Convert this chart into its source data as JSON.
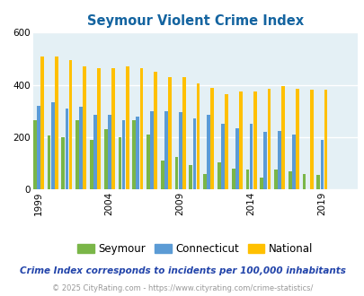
{
  "title": "Seymour Violent Crime Index",
  "subtitle": "Crime Index corresponds to incidents per 100,000 inhabitants",
  "copyright": "© 2025 CityRating.com - https://www.cityrating.com/crime-statistics/",
  "years": [
    1999,
    2000,
    2001,
    2002,
    2003,
    2004,
    2005,
    2006,
    2007,
    2008,
    2009,
    2010,
    2011,
    2012,
    2013,
    2014,
    2015,
    2016,
    2017,
    2018,
    2019,
    2020,
    2021
  ],
  "seymour": [
    265,
    205,
    200,
    265,
    190,
    230,
    200,
    265,
    210,
    110,
    125,
    95,
    60,
    105,
    80,
    75,
    45,
    75,
    70,
    60,
    55,
    null,
    null
  ],
  "connecticut": [
    320,
    335,
    310,
    315,
    285,
    285,
    265,
    280,
    300,
    300,
    295,
    270,
    285,
    250,
    235,
    250,
    220,
    225,
    210,
    null,
    190,
    null,
    null
  ],
  "national": [
    510,
    510,
    495,
    470,
    465,
    465,
    470,
    465,
    450,
    430,
    430,
    405,
    390,
    365,
    375,
    375,
    385,
    395,
    385,
    380,
    380,
    null,
    null
  ],
  "seymour_color": "#7ab648",
  "connecticut_color": "#5b9bd5",
  "national_color": "#ffc000",
  "bg_color": "#e4f0f5",
  "title_color": "#1464a0",
  "grid_color": "#ffffff",
  "ylim": [
    0,
    600
  ],
  "yticks": [
    0,
    200,
    400,
    600
  ],
  "xtick_years": [
    1999,
    2004,
    2009,
    2014,
    2019
  ],
  "legend_labels": [
    "Seymour",
    "Connecticut",
    "National"
  ],
  "bar_width": 0.26
}
